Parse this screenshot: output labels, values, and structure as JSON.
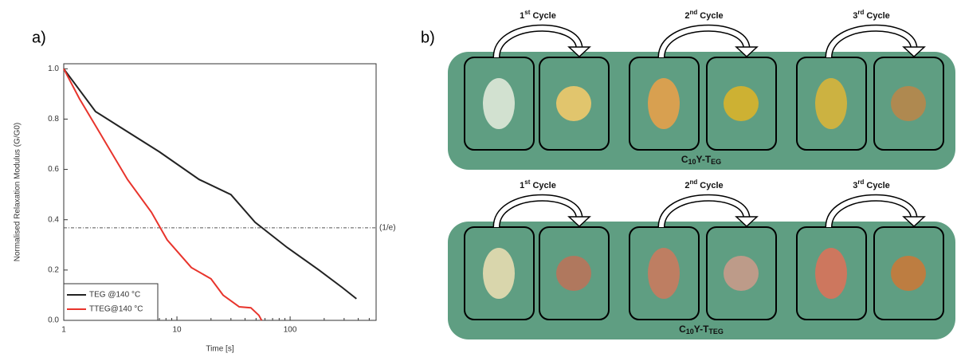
{
  "panel_labels": [
    "a)",
    "b)"
  ],
  "chart_data": {
    "type": "line",
    "x_label": "Time [s]",
    "y_label": "Normalised Relaxation Modulus (G/G0)",
    "xscale": "log",
    "xlim": [
      1,
      575
    ],
    "xticks": [
      1,
      10,
      100
    ],
    "ylim": [
      0,
      1.02
    ],
    "yticks": [
      {
        "value": 0,
        "label": "0.0"
      },
      0.2,
      0.4,
      0.6,
      0.8,
      {
        "value": 1,
        "label": "1.0"
      }
    ],
    "reference_line": {
      "value": 0.368,
      "label": "(1/e)"
    },
    "legend": "lower left",
    "series": [
      {
        "name": "TEG @140 °C",
        "color": "#222222",
        "x": [
          1,
          1.91,
          3.1,
          7,
          15.7,
          30,
          49,
          94,
          180,
          290,
          385
        ],
        "values": [
          1.0,
          0.83,
          0.77,
          0.67,
          0.56,
          0.5,
          0.39,
          0.29,
          0.2,
          0.13,
          0.086
        ]
      },
      {
        "name": "TTEG@140 °C",
        "color": "#e8342c",
        "x": [
          1,
          1.38,
          2.25,
          3.66,
          5.95,
          8.2,
          13.4,
          20,
          25.6,
          35.5,
          45,
          53,
          56
        ],
        "values": [
          1.0,
          0.88,
          0.72,
          0.56,
          0.43,
          0.32,
          0.21,
          0.165,
          0.1,
          0.054,
          0.05,
          0.02,
          0.0
        ]
      }
    ]
  },
  "diagram": {
    "rows": [
      {
        "cycles": [
          [
            "1",
            "st",
            " Cycle"
          ],
          [
            "2",
            "nd",
            " Cycle"
          ],
          [
            "3",
            "rd",
            " Cycle"
          ]
        ],
        "label": [
          "C",
          "10",
          "Y-T",
          "EG"
        ]
      },
      {
        "cycles": [
          [
            "1",
            "st",
            " Cycle"
          ],
          [
            "2",
            "nd",
            " Cycle"
          ],
          [
            "3",
            "rd",
            " Cycle"
          ]
        ],
        "label": [
          "C",
          "10",
          "Y-T",
          "TEG"
        ]
      }
    ]
  }
}
